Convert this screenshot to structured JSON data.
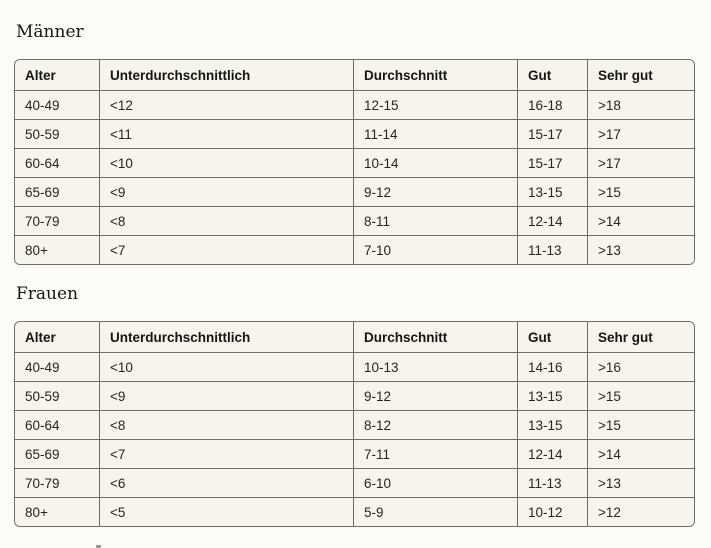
{
  "colors": {
    "page_background": "#FCFBF8",
    "cell_background": "#F6F4EC",
    "grid_border": "#6F6E67",
    "text": "#1D1C1A"
  },
  "sections": [
    {
      "title": "Männer",
      "table": {
        "headers": [
          "Alter",
          "Unterdurchschnittlich",
          "Durchschnitt",
          "Gut",
          "Sehr gut"
        ],
        "rows": [
          [
            "40-49",
            "<12",
            "12-15",
            "16-18",
            ">18"
          ],
          [
            "50-59",
            "<11",
            "11-14",
            "15-17",
            ">17"
          ],
          [
            "60-64",
            "<10",
            "10-14",
            "15-17",
            ">17"
          ],
          [
            "65-69",
            "<9",
            "9-12",
            "13-15",
            ">15"
          ],
          [
            "70-79",
            "<8",
            "8-11",
            "12-14",
            ">14"
          ],
          [
            "80+",
            "<7",
            "7-10",
            "11-13",
            ">13"
          ]
        ]
      }
    },
    {
      "title": "Frauen",
      "table": {
        "headers": [
          "Alter",
          "Unterdurchschnittlich",
          "Durchschnitt",
          "Gut",
          "Sehr gut"
        ],
        "rows": [
          [
            "40-49",
            "<10",
            "10-13",
            "14-16",
            ">16"
          ],
          [
            "50-59",
            "<9",
            "9-12",
            "13-15",
            ">15"
          ],
          [
            "60-64",
            "<8",
            "8-12",
            "13-15",
            ">15"
          ],
          [
            "65-69",
            "<7",
            "7-11",
            "12-14",
            ">14"
          ],
          [
            "70-79",
            "<6",
            "6-10",
            "11-13",
            ">13"
          ],
          [
            "80+",
            "<5",
            "5-9",
            "10-12",
            ">12"
          ]
        ]
      }
    }
  ]
}
